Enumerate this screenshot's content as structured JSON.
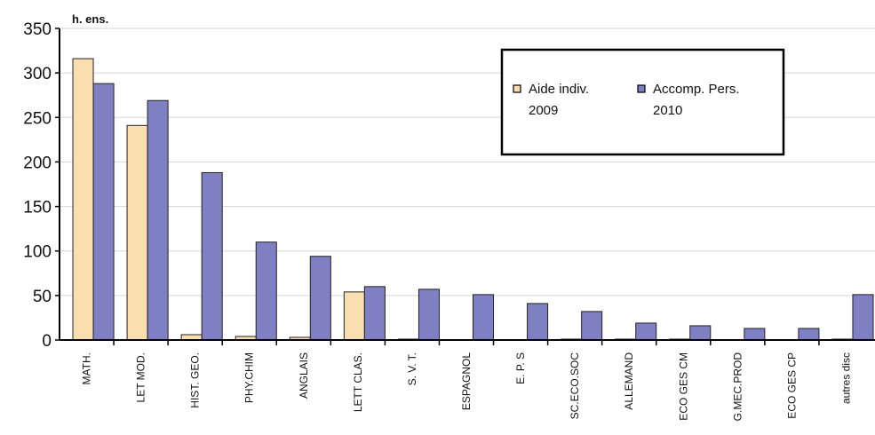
{
  "chart_data": {
    "type": "bar",
    "ylabel": "h. ens.",
    "ylim": [
      0,
      350
    ],
    "yticks": [
      "0",
      "50",
      "100",
      "150",
      "200",
      "250",
      "300",
      "350"
    ],
    "grid": true,
    "legend_placement": "top-right",
    "categories": [
      "MATH.",
      "LET MOD.",
      "HIST. GEO.",
      "PHY.CHIM",
      "ANGLAIS",
      "LETT CLAS.",
      "S. V. T.",
      "ESPAGNOL",
      "E. P. S",
      "SC.ECO.SOC",
      "ALLEMAND",
      "ECO GES CM",
      "G.MEC.PROD",
      "ECO GES CP",
      "autres disc"
    ],
    "series": [
      {
        "name_line1": "Aide indiv.",
        "name_line2": "2009",
        "color": "#f9deb0",
        "values": [
          316,
          241,
          6,
          4,
          3,
          54,
          1,
          0,
          0,
          1,
          1,
          1,
          0,
          0,
          1
        ]
      },
      {
        "name_line1": "Accomp. Pers.",
        "name_line2": "2010",
        "color": "#7f7fc4",
        "values": [
          288,
          269,
          188,
          110,
          94,
          60,
          57,
          51,
          41,
          32,
          19,
          16,
          13,
          13,
          51
        ]
      }
    ]
  }
}
